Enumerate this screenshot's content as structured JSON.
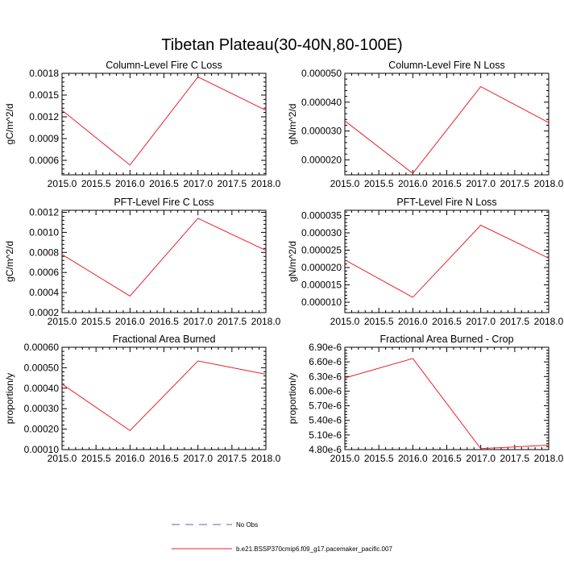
{
  "figure": {
    "title": "Tibetan Plateau(30-40N,80-100E)",
    "series_color": "#e8202a",
    "legend": [
      {
        "label": "No Obs",
        "style": "dashed",
        "color": "#6b5fb3"
      },
      {
        "label": "b.e21.BSSP370cmip6.f09_g17.pacemaker_pacific.007",
        "style": "solid",
        "color": "#e8202a"
      }
    ]
  },
  "chart_data": [
    {
      "type": "line",
      "title": "Column-Level Fire C Loss",
      "ylabel": "gC/m^2/d",
      "x": [
        2015.0,
        2016.0,
        2017.0,
        2018.0
      ],
      "y": [
        0.00129,
        0.000535,
        0.00175,
        0.00129
      ],
      "xlim": [
        2015.0,
        2018.0
      ],
      "ylim": [
        0.0004,
        0.0018
      ],
      "xticks": [
        "2015.0",
        "2015.5",
        "2016.0",
        "2016.5",
        "2017.0",
        "2017.5",
        "2018.0"
      ],
      "yticks": [
        "0.0006",
        "0.0009",
        "0.0012",
        "0.0015",
        "0.0018"
      ]
    },
    {
      "type": "line",
      "title": "Column-Level Fire N Loss",
      "ylabel": "gN/m^2/d",
      "x": [
        2015.0,
        2016.0,
        2017.0,
        2018.0
      ],
      "y": [
        3.35e-05,
        1.53e-05,
        4.54e-05,
        3.29e-05
      ],
      "xlim": [
        2015.0,
        2018.0
      ],
      "ylim": [
        1.48e-05,
        5e-05
      ],
      "xticks": [
        "2015.0",
        "2015.5",
        "2016.0",
        "2016.5",
        "2017.0",
        "2017.5",
        "2018.0"
      ],
      "yticks": [
        "0.000020",
        "0.000030",
        "0.000040",
        "0.000050"
      ]
    },
    {
      "type": "line",
      "title": "PFT-Level Fire C Loss",
      "ylabel": "gC/m^2/d",
      "x": [
        2015.0,
        2016.0,
        2017.0,
        2018.0
      ],
      "y": [
        0.00078,
        0.000365,
        0.00114,
        0.00082
      ],
      "xlim": [
        2015.0,
        2018.0
      ],
      "ylim": [
        0.0002,
        0.00122
      ],
      "xticks": [
        "2015.0",
        "2015.5",
        "2016.0",
        "2016.5",
        "2017.0",
        "2017.5",
        "2018.0"
      ],
      "yticks": [
        "0.0002",
        "0.0004",
        "0.0006",
        "0.0008",
        "0.0010",
        "0.0012"
      ]
    },
    {
      "type": "line",
      "title": "PFT-Level Fire N Loss",
      "ylabel": "gN/m^2/d",
      "x": [
        2015.0,
        2016.0,
        2017.0,
        2018.0
      ],
      "y": [
        2.22e-05,
        1.14e-05,
        3.22e-05,
        2.27e-05
      ],
      "xlim": [
        2015.0,
        2018.0
      ],
      "ylim": [
        7e-06,
        3.65e-05
      ],
      "xticks": [
        "2015.0",
        "2015.5",
        "2016.0",
        "2016.5",
        "2017.0",
        "2017.5",
        "2018.0"
      ],
      "yticks": [
        "0.000010",
        "0.000015",
        "0.000020",
        "0.000025",
        "0.000030",
        "0.000035"
      ]
    },
    {
      "type": "line",
      "title": "Fractional Area Burned",
      "ylabel": "proportion/y",
      "x": [
        2015.0,
        2016.0,
        2017.0,
        2018.0
      ],
      "y": [
        0.00042,
        0.000193,
        0.000533,
        0.000468
      ],
      "xlim": [
        2015.0,
        2018.0
      ],
      "ylim": [
        0.0001,
        0.0006
      ],
      "xticks": [
        "2015.0",
        "2015.5",
        "2016.0",
        "2016.5",
        "2017.0",
        "2017.5",
        "2018.0"
      ],
      "yticks": [
        "0.00010",
        "0.00020",
        "0.00030",
        "0.00040",
        "0.00050",
        "0.00060"
      ]
    },
    {
      "type": "line",
      "title": "Fractional Area Burned - Crop",
      "ylabel": "proportion/y",
      "x": [
        2015.0,
        2016.0,
        2017.0,
        2018.0
      ],
      "y": [
        6.27e-06,
        6.67e-06,
        4.82e-06,
        4.89e-06
      ],
      "xlim": [
        2015.0,
        2018.0
      ],
      "ylim": [
        4.8e-06,
        6.9e-06
      ],
      "xticks": [
        "2015.0",
        "2015.5",
        "2016.0",
        "2016.5",
        "2017.0",
        "2017.5",
        "2018.0"
      ],
      "yticks": [
        "4.80e-6",
        "5.10e-6",
        "5.40e-6",
        "5.70e-6",
        "6.00e-6",
        "6.30e-6",
        "6.60e-6",
        "6.90e-6"
      ]
    }
  ]
}
